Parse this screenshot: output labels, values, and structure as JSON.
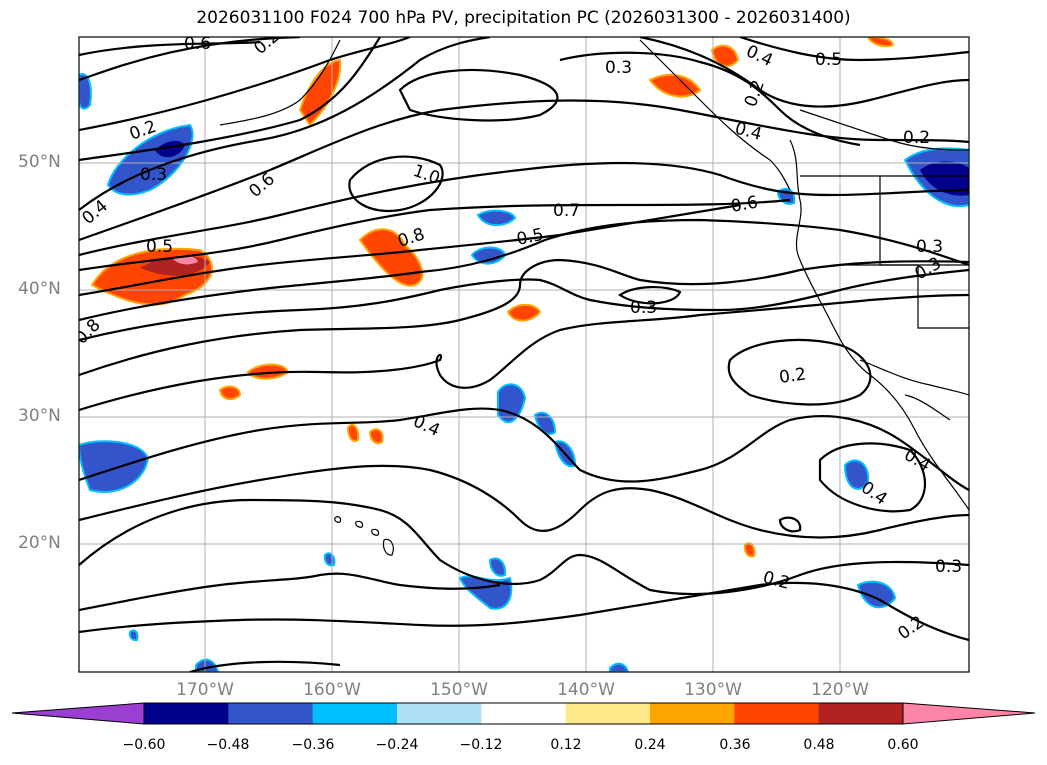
{
  "title": "2026031100 F024 700 hPa PV, precipitation PC (2026031300 - 2026031400)",
  "map": {
    "lat_labels": [
      "50°N",
      "40°N",
      "30°N",
      "20°N"
    ],
    "lon_labels": [
      "170°W",
      "160°W",
      "150°W",
      "140°W",
      "130°W",
      "120°W"
    ],
    "contour_labels": [
      "0.6",
      "0.3",
      "0.2",
      "0.3",
      "0.4",
      "0.5",
      "1.0",
      "0.7",
      "0.6",
      "0.5",
      "0.8",
      "0.6",
      "0.4",
      "0.5",
      "0.8",
      "0.3",
      "0.3",
      "0.2",
      "0.4",
      "0.4",
      "0.3",
      "0.2",
      "0.2",
      "0.2",
      "0.3",
      "0.4",
      "0.2",
      "0.4",
      "0.2"
    ]
  },
  "colorbar": {
    "tick_labels": [
      "−0.60",
      "−0.48",
      "−0.36",
      "−0.24",
      "−0.12",
      "0.12",
      "0.24",
      "0.36",
      "0.48",
      "0.60"
    ],
    "colors": [
      "#9a3fd1",
      "#00008b",
      "#3355cc",
      "#00bfff",
      "#aee0f8",
      "#ffffff",
      "#ffe98a",
      "#ffa500",
      "#ff4500",
      "#b22222",
      "#ff85a8"
    ]
  }
}
